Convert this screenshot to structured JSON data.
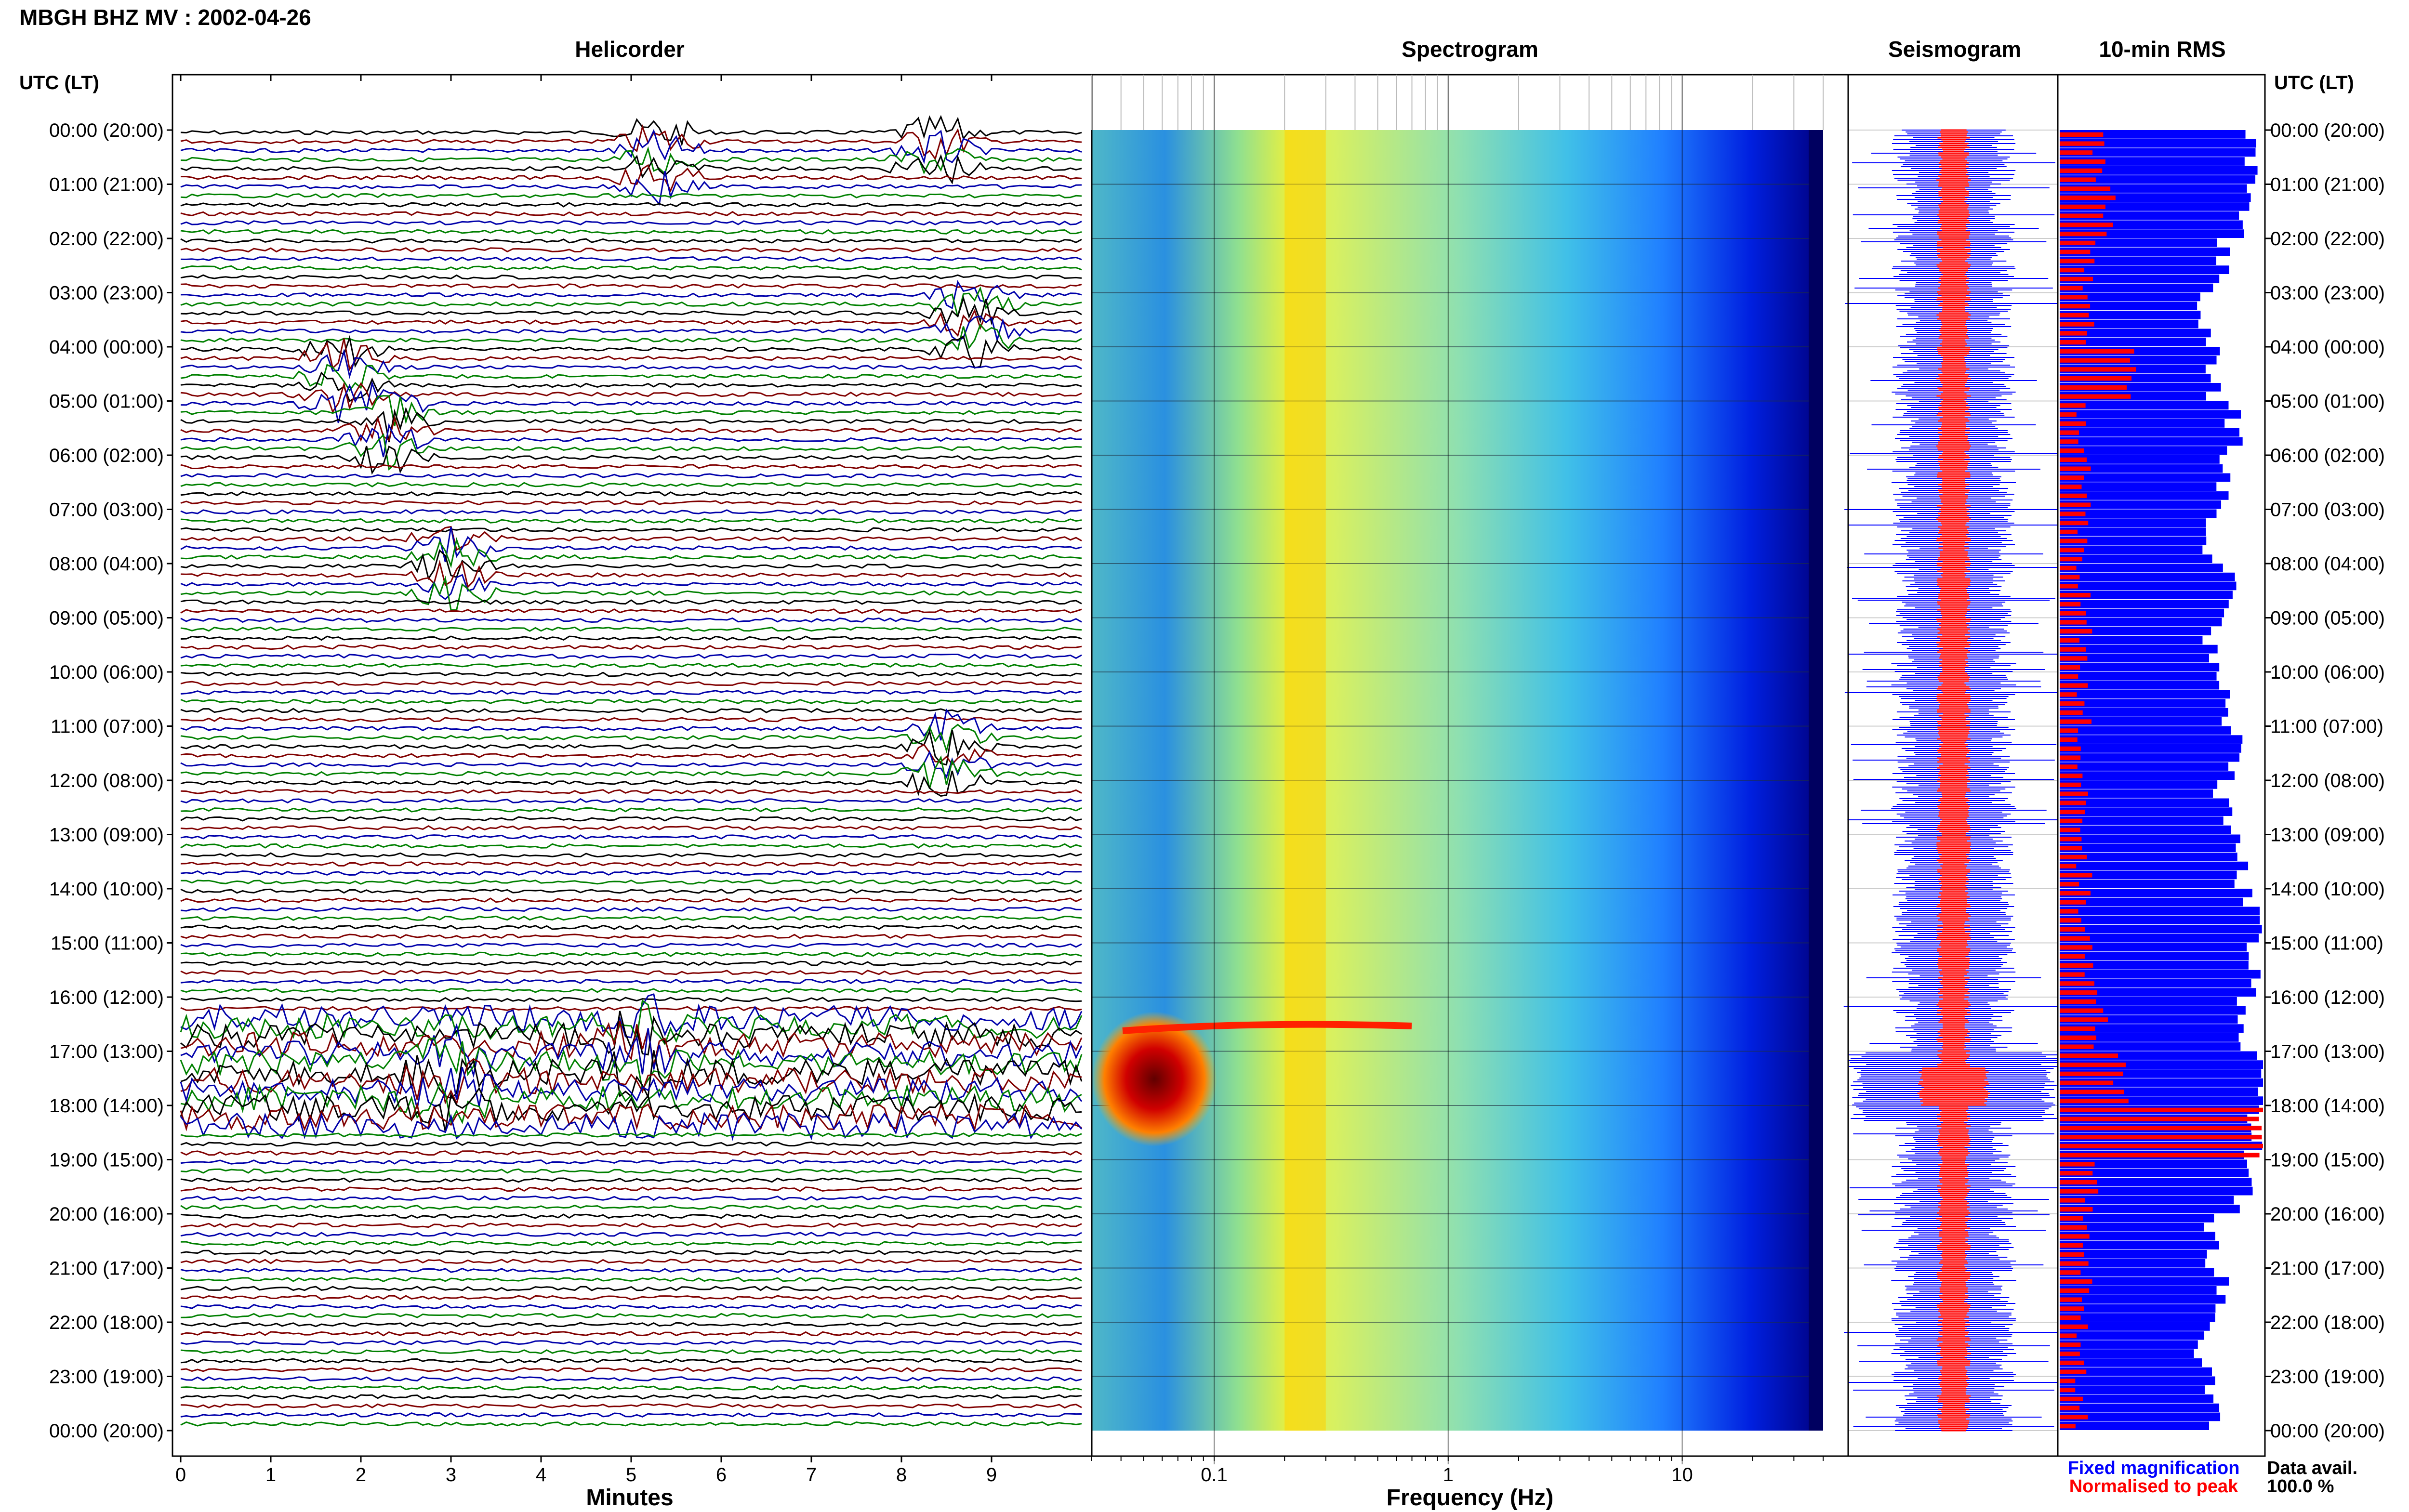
{
  "header": {
    "title": "MBGH BHZ MV : 2002-04-26"
  },
  "panels": {
    "helicorder": "Helicorder",
    "spectrogram": "Spectrogram",
    "seismogram": "Seismogram",
    "rms": "10-min RMS"
  },
  "time_axis": {
    "heading": "UTC (LT)",
    "labels": [
      "00:00 (20:00)",
      "01:00 (21:00)",
      "02:00 (22:00)",
      "03:00 (23:00)",
      "04:00 (00:00)",
      "05:00 (01:00)",
      "06:00 (02:00)",
      "07:00 (03:00)",
      "08:00 (04:00)",
      "09:00 (05:00)",
      "10:00 (06:00)",
      "11:00 (07:00)",
      "12:00 (08:00)",
      "13:00 (09:00)",
      "14:00 (10:00)",
      "15:00 (11:00)",
      "16:00 (12:00)",
      "17:00 (13:00)",
      "18:00 (14:00)",
      "19:00 (15:00)",
      "20:00 (16:00)",
      "21:00 (17:00)",
      "22:00 (18:00)",
      "23:00 (19:00)",
      "00:00 (20:00)"
    ]
  },
  "x_axes": {
    "minutes_label": "Minutes",
    "minutes_ticks": [
      "0",
      "1",
      "2",
      "3",
      "4",
      "5",
      "6",
      "7",
      "8",
      "9"
    ],
    "frequency_label": "Frequency (Hz)",
    "frequency_ticks": [
      "0.1",
      "1",
      "10"
    ]
  },
  "legend": {
    "fixed": "Fixed magnification",
    "normalised": "Normalised to peak",
    "fixed_color": "#0000ff",
    "normalised_color": "#ff0000"
  },
  "availability": {
    "label": "Data avail.",
    "value": "100.0 %"
  },
  "chart_data": [
    {
      "type": "line",
      "panel": "Helicorder",
      "xlabel": "Minutes",
      "xlim": [
        0,
        10
      ],
      "series_colors": [
        "#000000",
        "#800000",
        "#0000aa",
        "#008000"
      ],
      "event_minutes": [
        {
          "hour": 0.2,
          "minute": 8.4
        },
        {
          "hour": 0.5,
          "minute": 5.3
        },
        {
          "hour": 3.5,
          "minute": 8.8
        },
        {
          "hour": 4.5,
          "minute": 1.8
        },
        {
          "hour": 5.5,
          "minute": 2.3
        },
        {
          "hour": 8.0,
          "minute": 3.0
        },
        {
          "hour": 11.5,
          "minute": 8.5
        },
        {
          "hour": 16.8,
          "minute": 5.0
        },
        {
          "hour": 17.5,
          "minute": 3.0
        }
      ]
    },
    {
      "type": "heatmap",
      "panel": "Spectrogram",
      "xlabel": "Frequency (Hz)",
      "xscale": "log",
      "xlim": [
        0.03,
        40
      ],
      "colormap": [
        "#00008b",
        "#0000ff",
        "#00bfff",
        "#4fd8c8",
        "#c8f050",
        "#ffff00",
        "#ff8000",
        "#ff0000",
        "#800000"
      ],
      "strong_band_hz": [
        0.2,
        0.3
      ],
      "event_hours": [
        17.0,
        18.0
      ]
    },
    {
      "type": "bar",
      "panel": "10-min RMS",
      "hours": [
        0,
        1,
        2,
        3,
        4,
        5,
        6,
        7,
        8,
        9,
        10,
        11,
        12,
        13,
        14,
        15,
        16,
        17,
        18,
        19,
        20,
        21,
        22,
        23
      ],
      "rms_relative": [
        0.95,
        0.9,
        0.8,
        0.7,
        0.75,
        0.85,
        0.8,
        0.75,
        0.85,
        0.75,
        0.8,
        0.85,
        0.8,
        0.9,
        0.95,
        0.95,
        0.9,
        1.0,
        0.95,
        0.9,
        0.75,
        0.8,
        0.7,
        0.75
      ],
      "peak_relative": [
        0.2,
        0.25,
        0.15,
        0.15,
        0.35,
        0.12,
        0.12,
        0.12,
        0.12,
        0.12,
        0.12,
        0.12,
        0.12,
        0.12,
        0.12,
        0.15,
        0.2,
        0.3,
        1.0,
        0.15,
        0.12,
        0.12,
        0.1,
        0.1
      ]
    }
  ]
}
